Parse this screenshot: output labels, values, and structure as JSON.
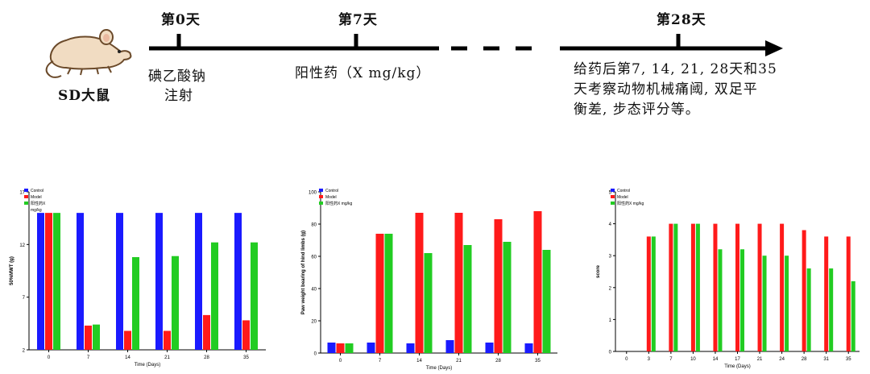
{
  "timeline": {
    "animal_label": "SD大鼠",
    "marks": [
      {
        "label": "第0天",
        "sub": [
          "碘乙酸钠",
          "注射"
        ]
      },
      {
        "label": "第7天",
        "sub": [
          "阳性药（X mg/kg）"
        ]
      },
      {
        "label": "第28天",
        "sub": []
      }
    ],
    "description": [
      "给药后第7, 14, 21, 28天和35",
      "天考察动物机械痛阈, 双足平",
      "衡差, 步态评分等。"
    ]
  },
  "colors": {
    "control": "#1a1aff",
    "model": "#ff1a1a",
    "drug": "#22cc22"
  },
  "chart_data": [
    {
      "type": "bar",
      "ylabel": "50%MWT (g)",
      "xlabel": "Time (Days)",
      "ylim": [
        2,
        17
      ],
      "yticks": [
        "2",
        "7",
        "12",
        "17"
      ],
      "categories": [
        "0",
        "7",
        "14",
        "21",
        "28",
        "35"
      ],
      "series": [
        {
          "name": "Control",
          "values": [
            15,
            15,
            15,
            15,
            15,
            15
          ]
        },
        {
          "name": "Model",
          "values": [
            15,
            4.3,
            3.8,
            3.8,
            5.3,
            4.8
          ]
        },
        {
          "name": "阳性药X mg/kg",
          "values": [
            15,
            4.4,
            10.8,
            10.9,
            12.2,
            12.2
          ]
        }
      ],
      "legend": [
        "Control",
        "Model",
        "阳性药X",
        "mg/kg"
      ]
    },
    {
      "type": "bar",
      "ylabel": "Paw weight bearing of hind limbs (g)",
      "xlabel": "Time (Days)",
      "ylim": [
        0,
        100
      ],
      "yticks": [
        "0",
        "20",
        "40",
        "60",
        "80",
        "100"
      ],
      "categories": [
        "0",
        "7",
        "14",
        "21",
        "28",
        "35"
      ],
      "series": [
        {
          "name": "Control",
          "values": [
            6.5,
            6.5,
            6.0,
            8.0,
            6.5,
            6.0
          ]
        },
        {
          "name": "Model",
          "values": [
            6.0,
            74,
            87,
            87,
            83,
            88
          ]
        },
        {
          "name": "阳性药X mg/kg",
          "values": [
            6.0,
            74,
            62,
            67,
            69,
            64
          ]
        }
      ],
      "legend": [
        "Control",
        "Model",
        "阳性药X mg/kg"
      ]
    },
    {
      "type": "bar",
      "ylabel": "score",
      "xlabel": "Time (Days)",
      "ylim": [
        0,
        5
      ],
      "yticks": [
        "0",
        "1",
        "2",
        "3",
        "4",
        "5"
      ],
      "categories": [
        "0",
        "3",
        "7",
        "10",
        "14",
        "17",
        "21",
        "24",
        "28",
        "31",
        "35"
      ],
      "series": [
        {
          "name": "Control",
          "values": [
            0,
            0,
            0,
            0,
            0,
            0,
            0,
            0,
            0,
            0,
            0
          ]
        },
        {
          "name": "Model",
          "values": [
            0,
            3.6,
            4.0,
            4.0,
            4.0,
            4.0,
            4.0,
            4.0,
            3.8,
            3.6,
            3.6
          ]
        },
        {
          "name": "阳性药X mg/kg",
          "values": [
            0,
            3.6,
            4.0,
            4.0,
            3.2,
            3.2,
            3.0,
            3.0,
            2.6,
            2.6,
            2.2
          ]
        }
      ],
      "legend": [
        "Control",
        "Model",
        "阳性药X mg/kg"
      ]
    }
  ]
}
